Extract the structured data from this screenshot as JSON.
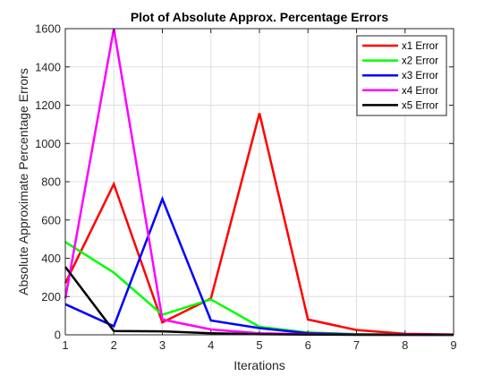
{
  "chart_data": {
    "type": "line",
    "title": "Plot of Absolute Approx. Percentage Errors",
    "xlabel": "Iterations",
    "ylabel": "Absolute Approximate Percentage Errors",
    "xlim": [
      1,
      9
    ],
    "ylim": [
      0,
      1600
    ],
    "xticks": [
      1,
      2,
      3,
      4,
      5,
      6,
      7,
      8,
      9
    ],
    "yticks": [
      0,
      200,
      400,
      600,
      800,
      1000,
      1200,
      1400,
      1600
    ],
    "grid": true,
    "legend_position": "top-right",
    "x": [
      1,
      2,
      3,
      4,
      5,
      6,
      7,
      8,
      9
    ],
    "series": [
      {
        "name": "x1 Error",
        "color": "#ff0000",
        "values": [
          270,
          788,
          65,
          190,
          1158,
          80,
          25,
          5,
          2
        ]
      },
      {
        "name": "x2 Error",
        "color": "#00ff00",
        "values": [
          485,
          325,
          105,
          185,
          42,
          12,
          4,
          1,
          0
        ]
      },
      {
        "name": "x3 Error",
        "color": "#0000ff",
        "values": [
          160,
          45,
          710,
          75,
          35,
          8,
          2,
          1,
          0
        ]
      },
      {
        "name": "x4 Error",
        "color": "#ff00ff",
        "values": [
          190,
          1600,
          80,
          28,
          8,
          3,
          1,
          0,
          0
        ]
      },
      {
        "name": "x5 Error",
        "color": "#000000",
        "values": [
          355,
          20,
          18,
          8,
          3,
          1,
          0,
          0,
          0
        ]
      }
    ]
  }
}
